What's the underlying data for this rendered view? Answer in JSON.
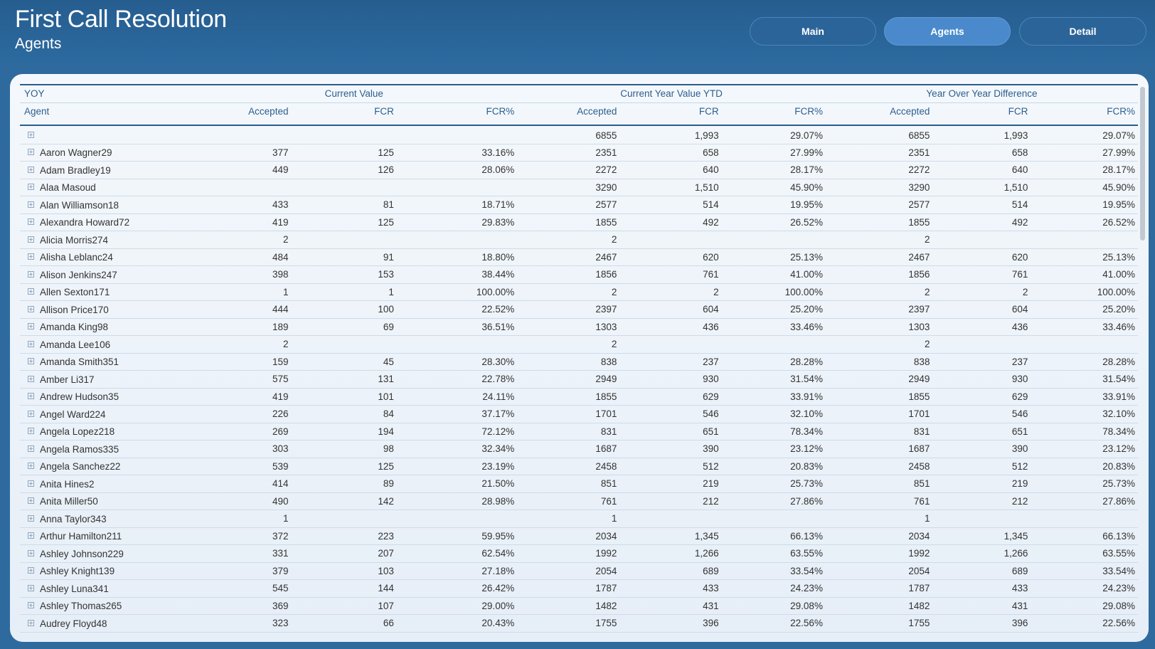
{
  "header": {
    "title": "First Call Resolution",
    "subtitle": "Agents"
  },
  "nav": {
    "main_label": "Main",
    "agents_label": "Agents",
    "detail_label": "Detail",
    "active": "Agents"
  },
  "table": {
    "corner_label": "YOY",
    "groups": [
      "Current Value",
      "Current Year Value YTD",
      "Year Over Year Difference"
    ],
    "columns": [
      "Agent",
      "Accepted",
      "FCR",
      "FCR%",
      "Accepted",
      "FCR",
      "FCR%",
      "Accepted",
      "FCR",
      "FCR%"
    ],
    "rows": [
      [
        "",
        "",
        "",
        "",
        "6855",
        "1,993",
        "29.07%",
        "6855",
        "1,993",
        "29.07%"
      ],
      [
        "Aaron Wagner29",
        "377",
        "125",
        "33.16%",
        "2351",
        "658",
        "27.99%",
        "2351",
        "658",
        "27.99%"
      ],
      [
        "Adam Bradley19",
        "449",
        "126",
        "28.06%",
        "2272",
        "640",
        "28.17%",
        "2272",
        "640",
        "28.17%"
      ],
      [
        "Alaa Masoud",
        "",
        "",
        "",
        "3290",
        "1,510",
        "45.90%",
        "3290",
        "1,510",
        "45.90%"
      ],
      [
        "Alan Williamson18",
        "433",
        "81",
        "18.71%",
        "2577",
        "514",
        "19.95%",
        "2577",
        "514",
        "19.95%"
      ],
      [
        "Alexandra Howard72",
        "419",
        "125",
        "29.83%",
        "1855",
        "492",
        "26.52%",
        "1855",
        "492",
        "26.52%"
      ],
      [
        "Alicia Morris274",
        "2",
        "",
        "",
        "2",
        "",
        "",
        "2",
        "",
        ""
      ],
      [
        "Alisha Leblanc24",
        "484",
        "91",
        "18.80%",
        "2467",
        "620",
        "25.13%",
        "2467",
        "620",
        "25.13%"
      ],
      [
        "Alison Jenkins247",
        "398",
        "153",
        "38.44%",
        "1856",
        "761",
        "41.00%",
        "1856",
        "761",
        "41.00%"
      ],
      [
        "Allen Sexton171",
        "1",
        "1",
        "100.00%",
        "2",
        "2",
        "100.00%",
        "2",
        "2",
        "100.00%"
      ],
      [
        "Allison Price170",
        "444",
        "100",
        "22.52%",
        "2397",
        "604",
        "25.20%",
        "2397",
        "604",
        "25.20%"
      ],
      [
        "Amanda King98",
        "189",
        "69",
        "36.51%",
        "1303",
        "436",
        "33.46%",
        "1303",
        "436",
        "33.46%"
      ],
      [
        "Amanda Lee106",
        "2",
        "",
        "",
        "2",
        "",
        "",
        "2",
        "",
        ""
      ],
      [
        "Amanda Smith351",
        "159",
        "45",
        "28.30%",
        "838",
        "237",
        "28.28%",
        "838",
        "237",
        "28.28%"
      ],
      [
        "Amber Li317",
        "575",
        "131",
        "22.78%",
        "2949",
        "930",
        "31.54%",
        "2949",
        "930",
        "31.54%"
      ],
      [
        "Andrew Hudson35",
        "419",
        "101",
        "24.11%",
        "1855",
        "629",
        "33.91%",
        "1855",
        "629",
        "33.91%"
      ],
      [
        "Angel Ward224",
        "226",
        "84",
        "37.17%",
        "1701",
        "546",
        "32.10%",
        "1701",
        "546",
        "32.10%"
      ],
      [
        "Angela Lopez218",
        "269",
        "194",
        "72.12%",
        "831",
        "651",
        "78.34%",
        "831",
        "651",
        "78.34%"
      ],
      [
        "Angela Ramos335",
        "303",
        "98",
        "32.34%",
        "1687",
        "390",
        "23.12%",
        "1687",
        "390",
        "23.12%"
      ],
      [
        "Angela Sanchez22",
        "539",
        "125",
        "23.19%",
        "2458",
        "512",
        "20.83%",
        "2458",
        "512",
        "20.83%"
      ],
      [
        "Anita Hines2",
        "414",
        "89",
        "21.50%",
        "851",
        "219",
        "25.73%",
        "851",
        "219",
        "25.73%"
      ],
      [
        "Anita Miller50",
        "490",
        "142",
        "28.98%",
        "761",
        "212",
        "27.86%",
        "761",
        "212",
        "27.86%"
      ],
      [
        "Anna Taylor343",
        "1",
        "",
        "",
        "1",
        "",
        "",
        "1",
        "",
        ""
      ],
      [
        "Arthur Hamilton211",
        "372",
        "223",
        "59.95%",
        "2034",
        "1,345",
        "66.13%",
        "2034",
        "1,345",
        "66.13%"
      ],
      [
        "Ashley Johnson229",
        "331",
        "207",
        "62.54%",
        "1992",
        "1,266",
        "63.55%",
        "1992",
        "1,266",
        "63.55%"
      ],
      [
        "Ashley Knight139",
        "379",
        "103",
        "27.18%",
        "2054",
        "689",
        "33.54%",
        "2054",
        "689",
        "33.54%"
      ],
      [
        "Ashley Luna341",
        "545",
        "144",
        "26.42%",
        "1787",
        "433",
        "24.23%",
        "1787",
        "433",
        "24.23%"
      ],
      [
        "Ashley Thomas265",
        "369",
        "107",
        "29.00%",
        "1482",
        "431",
        "29.08%",
        "1482",
        "431",
        "29.08%"
      ],
      [
        "Audrey Floyd48",
        "323",
        "66",
        "20.43%",
        "1755",
        "396",
        "22.56%",
        "1755",
        "396",
        "22.56%"
      ]
    ]
  }
}
